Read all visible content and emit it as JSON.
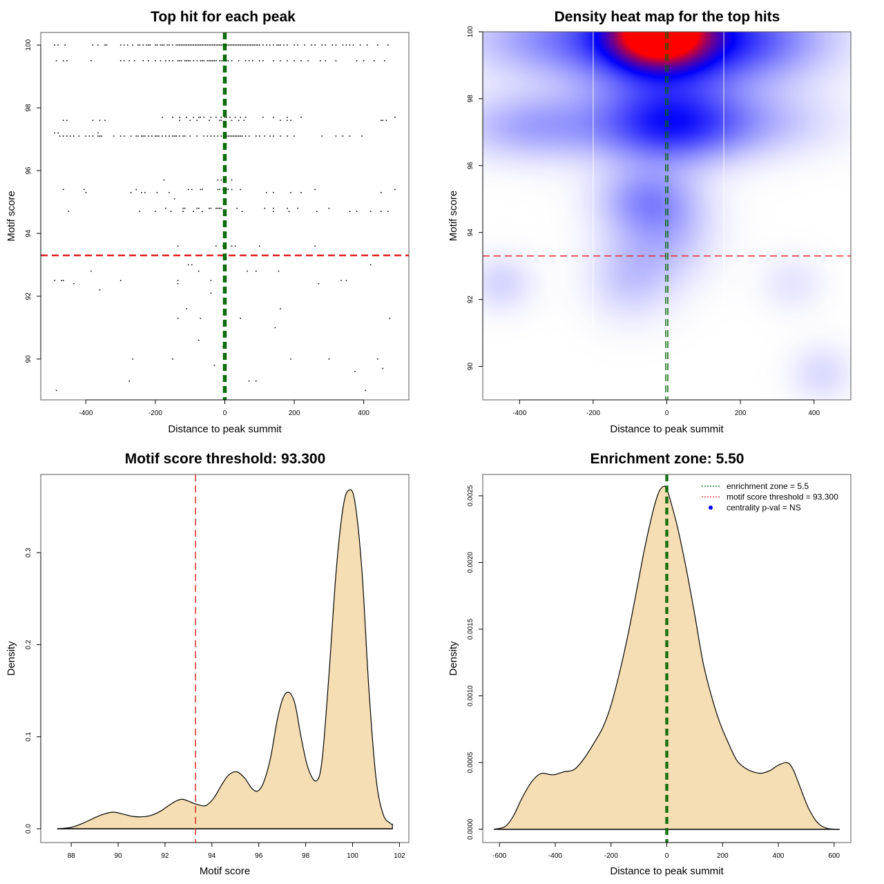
{
  "chart_data": [
    {
      "id": "scatter",
      "type": "scatter",
      "title": "Top hit for each peak",
      "xlabel": "Distance to peak summit",
      "ylabel": "Motif score",
      "xlim": [
        -530,
        530
      ],
      "ylim": [
        88.7,
        100.4
      ],
      "xticks": [
        -400,
        -200,
        0,
        200,
        400
      ],
      "yticks": [
        90,
        92,
        94,
        96,
        98,
        100
      ],
      "grid": false,
      "point_color": "#000000",
      "hlines": [
        {
          "y": 93.3,
          "color": "#e0282b",
          "style": "dashed"
        }
      ],
      "vlines": [
        {
          "x": -2.75,
          "color": "#006400",
          "style": "dashed"
        },
        {
          "x": 2.75,
          "color": "#006400",
          "style": "dashed"
        }
      ],
      "rows": [
        {
          "y": 100.0,
          "x": [
            -490,
            -480,
            -460,
            -380,
            -365,
            -345,
            -340,
            -300,
            -290,
            -280,
            -265,
            -250,
            -245,
            -235,
            -225,
            -220,
            -215,
            -200,
            -195,
            -185,
            -180,
            -175,
            -165,
            -160,
            -150,
            -140,
            -135,
            -130,
            -125,
            -120,
            -115,
            -110,
            -105,
            -100,
            -95,
            -90,
            -85,
            -80,
            -75,
            -70,
            -65,
            -60,
            -55,
            -50,
            -45,
            -40,
            -35,
            -30,
            -25,
            -20,
            -15,
            -10,
            -5,
            0,
            5,
            10,
            15,
            20,
            25,
            30,
            35,
            40,
            45,
            50,
            55,
            60,
            65,
            70,
            75,
            80,
            85,
            90,
            95,
            100,
            110,
            120,
            130,
            140,
            150,
            155,
            160,
            170,
            180,
            200,
            210,
            230,
            250,
            260,
            280,
            290,
            310,
            320,
            340,
            350,
            360,
            370,
            390,
            410,
            440,
            470
          ]
        },
        {
          "y": 99.5,
          "x": [
            -485,
            -465,
            -455,
            -385,
            -300,
            -290,
            -275,
            -260,
            -235,
            -220,
            -200,
            -185,
            -170,
            -160,
            -150,
            -135,
            -130,
            -125,
            -115,
            -110,
            -105,
            -100,
            -90,
            -80,
            -70,
            -65,
            -60,
            -50,
            -45,
            -40,
            -35,
            -30,
            -25,
            -15,
            -10,
            -5,
            0,
            5,
            10,
            20,
            40,
            60,
            70,
            80,
            100,
            110,
            140,
            160,
            180,
            200,
            220,
            240,
            275,
            290,
            320,
            380,
            400,
            430,
            460
          ]
        },
        {
          "y": 97.7,
          "x": [
            -180,
            -150,
            -130,
            -110,
            -90,
            -75,
            -70,
            -60,
            -40,
            -25,
            -10,
            0,
            5,
            15,
            30,
            45,
            60,
            110,
            140,
            180,
            220,
            490
          ]
        },
        {
          "y": 97.6,
          "x": [
            -465,
            -455,
            -380,
            -360,
            -345,
            -130,
            -100,
            -80,
            -45,
            -15,
            -10,
            20,
            40,
            55,
            160,
            180,
            190,
            450,
            455,
            465
          ]
        },
        {
          "y": 97.2,
          "x": [
            -490,
            -480,
            -365
          ]
        },
        {
          "y": 97.1,
          "x": [
            -475,
            -465,
            -455,
            -445,
            -435,
            -420,
            -400,
            -390,
            -380,
            -365,
            -360,
            -355,
            -320,
            -300,
            -290,
            -270,
            -255,
            -250,
            -240,
            -235,
            -230,
            -220,
            -210,
            -200,
            -195,
            -190,
            -180,
            -170,
            -160,
            -150,
            -145,
            -140,
            -130,
            -120,
            -115,
            -100,
            -80,
            -60,
            -50,
            -40,
            -30,
            -20,
            -10,
            0,
            5,
            10,
            15,
            20,
            25,
            30,
            35,
            40,
            45,
            50,
            60,
            70,
            90,
            100,
            115,
            130,
            140,
            160,
            180,
            200,
            280,
            320,
            340,
            360,
            395
          ]
        },
        {
          "y": 95.7,
          "x": [
            -175,
            -20,
            -10,
            0,
            20
          ]
        },
        {
          "y": 95.4,
          "x": [
            -465,
            -405,
            -255,
            -105,
            -95,
            -70,
            -65,
            -20,
            -15,
            -5,
            5,
            10,
            20,
            45,
            260,
            490
          ]
        },
        {
          "y": 95.3,
          "x": [
            -400,
            -270,
            -240,
            -230,
            -195,
            -160,
            120,
            140,
            190,
            220,
            450
          ]
        },
        {
          "y": 95.1,
          "x": [
            -145
          ]
        },
        {
          "y": 94.8,
          "x": [
            -170,
            -120,
            -115,
            -80,
            -75,
            -45,
            -40,
            -25,
            -20,
            -15,
            -10,
            35,
            115,
            140,
            180,
            210,
            300
          ]
        },
        {
          "y": 94.7,
          "x": [
            -450,
            -245,
            -200,
            -155,
            -120,
            -90,
            -65,
            50,
            140,
            185,
            265,
            360,
            380,
            420,
            450,
            470
          ]
        },
        {
          "y": 93.6,
          "x": [
            -135,
            -25,
            -5,
            20,
            30,
            100,
            260
          ]
        },
        {
          "y": 93.0,
          "x": [
            -105,
            -95,
            420
          ]
        },
        {
          "y": 92.8,
          "x": [
            -385,
            -75,
            65,
            90,
            155
          ]
        },
        {
          "y": 92.5,
          "x": [
            -490,
            -470,
            -465,
            -300,
            -135,
            -40,
            335,
            350
          ]
        },
        {
          "y": 92.4,
          "x": [
            -435,
            -135,
            270
          ]
        },
        {
          "y": 92.2,
          "x": [
            -360
          ]
        },
        {
          "y": 92.1,
          "x": [
            -40
          ]
        },
        {
          "y": 91.6,
          "x": [
            -110,
            160
          ]
        },
        {
          "y": 91.3,
          "x": [
            -135,
            -70,
            45,
            475
          ]
        },
        {
          "y": 91.0,
          "x": [
            145
          ]
        },
        {
          "y": 90.6,
          "x": [
            -75
          ]
        },
        {
          "y": 90.4,
          "x": [
            -5
          ]
        },
        {
          "y": 90.0,
          "x": [
            -265,
            -150,
            190,
            300,
            440
          ]
        },
        {
          "y": 89.8,
          "x": [
            -30
          ]
        },
        {
          "y": 89.7,
          "x": [
            455
          ]
        },
        {
          "y": 89.6,
          "x": [
            375
          ]
        },
        {
          "y": 89.3,
          "x": [
            -275,
            70,
            90
          ]
        },
        {
          "y": 89.0,
          "x": [
            -485,
            405
          ]
        }
      ]
    },
    {
      "id": "heatmap",
      "type": "heatmap",
      "title": "Density heat map for the top hits",
      "xlabel": "Distance to peak summit",
      "ylabel": "Motif score",
      "xlim": [
        -500,
        500
      ],
      "ylim": [
        89,
        100
      ],
      "xticks": [
        -400,
        -200,
        0,
        200,
        400
      ],
      "yticks": [
        90,
        92,
        94,
        96,
        98,
        100
      ],
      "colorscale": [
        "#ffffff",
        "#0000ff",
        "#ff0000"
      ],
      "grid_verticals": [
        -200,
        155
      ],
      "hlines": [
        {
          "y": 93.3,
          "color": "#e0282b",
          "style": "dashed"
        }
      ],
      "vlines": [
        {
          "x": -2.75,
          "color": "#006400",
          "style": "dashed"
        },
        {
          "x": 2.75,
          "color": "#006400",
          "style": "dashed"
        }
      ],
      "density_blobs": [
        {
          "x": -20,
          "y": 100,
          "sx": 80,
          "sy": 0.6,
          "w": 1.0
        },
        {
          "x": -20,
          "y": 99.8,
          "sx": 150,
          "sy": 1.2,
          "w": 0.45
        },
        {
          "x": 220,
          "y": 99.8,
          "sx": 160,
          "sy": 0.9,
          "w": 0.28
        },
        {
          "x": -300,
          "y": 99.8,
          "sx": 170,
          "sy": 0.8,
          "w": 0.2
        },
        {
          "x": 0,
          "y": 97.2,
          "sx": 130,
          "sy": 0.8,
          "w": 0.35
        },
        {
          "x": -350,
          "y": 97.2,
          "sx": 150,
          "sy": 0.7,
          "w": 0.18
        },
        {
          "x": 200,
          "y": 97.3,
          "sx": 170,
          "sy": 0.7,
          "w": 0.14
        },
        {
          "x": -60,
          "y": 95.0,
          "sx": 90,
          "sy": 0.7,
          "w": 0.18
        },
        {
          "x": 0,
          "y": 94.0,
          "sx": 90,
          "sy": 1.0,
          "w": 0.12
        },
        {
          "x": -100,
          "y": 92.7,
          "sx": 80,
          "sy": 0.9,
          "w": 0.1
        },
        {
          "x": -450,
          "y": 92.5,
          "sx": 60,
          "sy": 0.6,
          "w": 0.08
        },
        {
          "x": 420,
          "y": 89.8,
          "sx": 60,
          "sy": 0.6,
          "w": 0.07
        },
        {
          "x": 340,
          "y": 92.5,
          "sx": 60,
          "sy": 0.6,
          "w": 0.05
        }
      ]
    },
    {
      "id": "score-density",
      "type": "area",
      "title": "Motif score threshold: 93.300",
      "xlabel": "Motif score",
      "ylabel": "Density",
      "xlim": [
        86.7,
        102.4
      ],
      "ylim": [
        -0.015,
        0.385
      ],
      "xticks": [
        88,
        90,
        92,
        94,
        96,
        98,
        100,
        102
      ],
      "yticks": [
        0.0,
        0.1,
        0.2,
        0.3
      ],
      "ytick_labels": [
        "0.0",
        "0.1",
        "0.2",
        "0.3"
      ],
      "fill": "#f5deb3",
      "vlines": [
        {
          "x": 93.3,
          "color": "#e0282b",
          "style": "dashed"
        }
      ],
      "x": [
        87.4,
        88.0,
        88.5,
        89.0,
        89.4,
        89.8,
        90.2,
        90.6,
        91.0,
        91.4,
        91.8,
        92.2,
        92.5,
        92.75,
        93.0,
        93.3,
        93.6,
        93.8,
        94.1,
        94.4,
        94.7,
        95.05,
        95.4,
        95.7,
        95.95,
        96.2,
        96.5,
        96.8,
        97.05,
        97.3,
        97.55,
        97.8,
        98.1,
        98.45,
        98.7,
        99.0,
        99.3,
        99.6,
        99.85,
        100.1,
        100.4,
        100.7,
        101.0,
        101.3,
        101.6,
        101.7
      ],
      "y": [
        0.0,
        0.0015,
        0.006,
        0.012,
        0.016,
        0.018,
        0.016,
        0.0135,
        0.013,
        0.0145,
        0.019,
        0.026,
        0.0305,
        0.032,
        0.03,
        0.027,
        0.025,
        0.026,
        0.034,
        0.047,
        0.058,
        0.062,
        0.055,
        0.044,
        0.041,
        0.05,
        0.077,
        0.12,
        0.143,
        0.148,
        0.135,
        0.1,
        0.066,
        0.052,
        0.075,
        0.17,
        0.28,
        0.35,
        0.368,
        0.355,
        0.28,
        0.15,
        0.055,
        0.016,
        0.006,
        0.005
      ]
    },
    {
      "id": "distance-density",
      "type": "area",
      "title": "Enrichment zone: 5.50",
      "xlabel": "Distance to peak summit",
      "ylabel": "Density",
      "xlim": [
        -660,
        660
      ],
      "ylim": [
        -0.0001,
        0.00266
      ],
      "xticks": [
        -600,
        -400,
        -200,
        0,
        200,
        400,
        600
      ],
      "yticks": [
        0.0,
        0.0005,
        0.001,
        0.0015,
        0.002,
        0.0025
      ],
      "ytick_labels": [
        "0.0000",
        "0.0005",
        "0.0010",
        "0.0015",
        "0.0020",
        "0.0025"
      ],
      "fill": "#f5deb3",
      "vlines": [
        {
          "x": -2.75,
          "color": "#006400",
          "style": "dashed"
        },
        {
          "x": 2.75,
          "color": "#006400",
          "style": "dashed"
        }
      ],
      "x": [
        -620,
        -580,
        -550,
        -520,
        -490,
        -465,
        -445,
        -420,
        -400,
        -370,
        -340,
        -320,
        -290,
        -260,
        -230,
        -200,
        -170,
        -140,
        -110,
        -80,
        -50,
        -30,
        -13,
        0,
        15,
        40,
        70,
        100,
        130,
        160,
        190,
        220,
        250,
        280,
        310,
        340,
        370,
        400,
        430,
        450,
        470,
        490,
        510,
        540,
        570,
        600,
        620
      ],
      "y": [
        0.0,
        2e-05,
        0.0001,
        0.00023,
        0.00034,
        0.0004,
        0.00042,
        0.00041,
        0.00041,
        0.00043,
        0.00044,
        0.00047,
        0.00055,
        0.00065,
        0.00076,
        0.00093,
        0.00117,
        0.00145,
        0.00177,
        0.0021,
        0.00238,
        0.00252,
        0.00257,
        0.00255,
        0.00245,
        0.00225,
        0.00195,
        0.00161,
        0.00125,
        0.001,
        0.0008,
        0.00065,
        0.00052,
        0.00046,
        0.00043,
        0.00042,
        0.00044,
        0.00048,
        0.0005,
        0.00046,
        0.00036,
        0.00025,
        0.00015,
        5e-05,
        1e-05,
        0.0,
        0.0
      ]
    }
  ],
  "legend": {
    "items": [
      {
        "label": "enrichment zone = 5.5",
        "color": "#006400",
        "marker": "dotted-line"
      },
      {
        "label": "motif score threshold = 93.300",
        "color": "#e0282b",
        "marker": "dotted-line"
      },
      {
        "label": "centrality p-val = NS",
        "color": "#0000ff",
        "marker": "dot"
      }
    ],
    "position": "top-right"
  }
}
